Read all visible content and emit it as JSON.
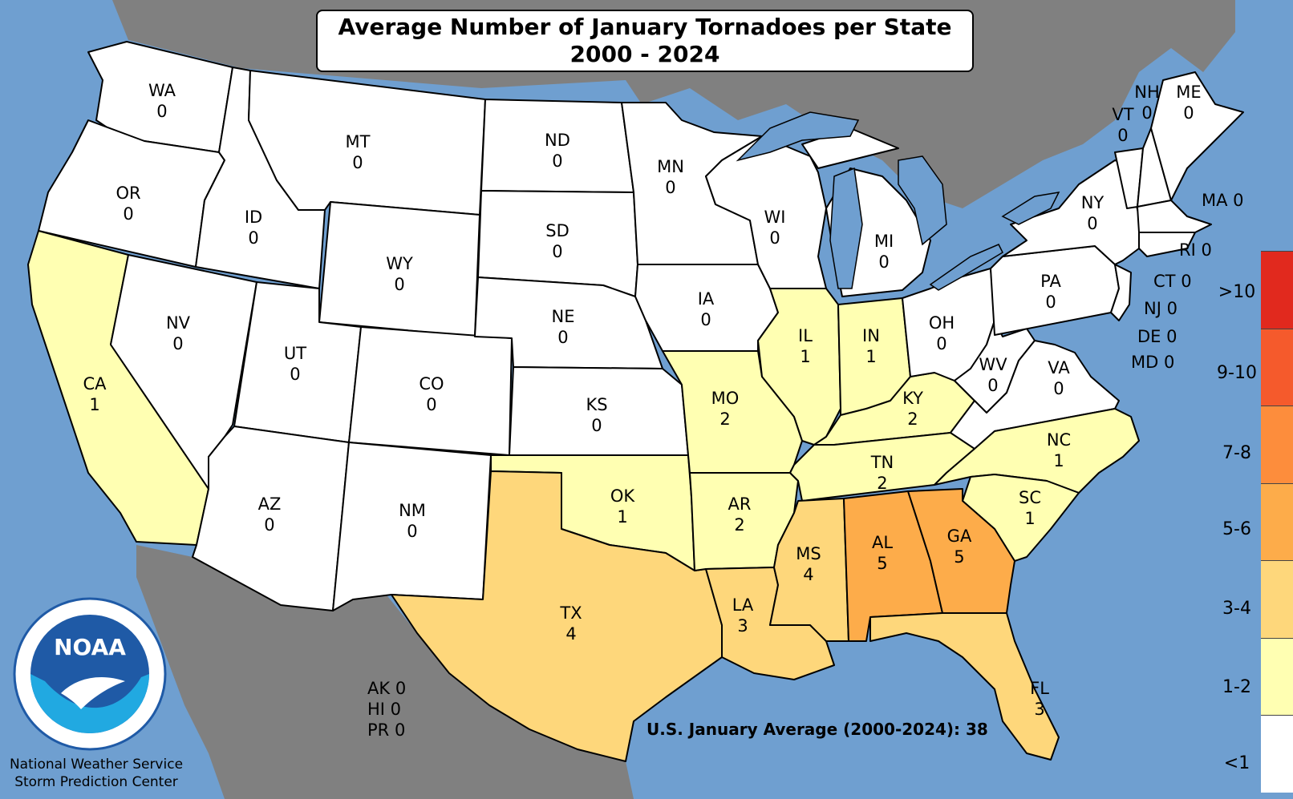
{
  "title": {
    "line1": "Average Number of January Tornadoes per State",
    "line2": "2000 - 2024"
  },
  "colors": {
    "ocean": "#6f9fd0",
    "land_outside": "#808080",
    "lt1": "#ffffff",
    "c1_2": "#ffffb2",
    "c3_4": "#fed77b",
    "c5_6": "#fdac4a",
    "c7_8": "#fd8d3c",
    "c9_10": "#f55a2c",
    "gt10": "#e1291e"
  },
  "states": [
    {
      "abbr": "WA",
      "value": "0"
    },
    {
      "abbr": "OR",
      "value": "0"
    },
    {
      "abbr": "CA",
      "value": "1"
    },
    {
      "abbr": "ID",
      "value": "0"
    },
    {
      "abbr": "NV",
      "value": "0"
    },
    {
      "abbr": "MT",
      "value": "0"
    },
    {
      "abbr": "WY",
      "value": "0"
    },
    {
      "abbr": "UT",
      "value": "0"
    },
    {
      "abbr": "AZ",
      "value": "0"
    },
    {
      "abbr": "CO",
      "value": "0"
    },
    {
      "abbr": "NM",
      "value": "0"
    },
    {
      "abbr": "ND",
      "value": "0"
    },
    {
      "abbr": "SD",
      "value": "0"
    },
    {
      "abbr": "NE",
      "value": "0"
    },
    {
      "abbr": "KS",
      "value": "0"
    },
    {
      "abbr": "OK",
      "value": "1"
    },
    {
      "abbr": "TX",
      "value": "4"
    },
    {
      "abbr": "MN",
      "value": "0"
    },
    {
      "abbr": "IA",
      "value": "0"
    },
    {
      "abbr": "MO",
      "value": "2"
    },
    {
      "abbr": "AR",
      "value": "2"
    },
    {
      "abbr": "LA",
      "value": "3"
    },
    {
      "abbr": "WI",
      "value": "0"
    },
    {
      "abbr": "IL",
      "value": "1"
    },
    {
      "abbr": "MI",
      "value": "0"
    },
    {
      "abbr": "IN",
      "value": "1"
    },
    {
      "abbr": "KY",
      "value": "2"
    },
    {
      "abbr": "TN",
      "value": "2"
    },
    {
      "abbr": "MS",
      "value": "4"
    },
    {
      "abbr": "AL",
      "value": "5"
    },
    {
      "abbr": "OH",
      "value": "0"
    },
    {
      "abbr": "WV",
      "value": "0"
    },
    {
      "abbr": "VA",
      "value": "0"
    },
    {
      "abbr": "NC",
      "value": "1"
    },
    {
      "abbr": "SC",
      "value": "1"
    },
    {
      "abbr": "GA",
      "value": "5"
    },
    {
      "abbr": "FL",
      "value": "3"
    },
    {
      "abbr": "PA",
      "value": "0"
    },
    {
      "abbr": "NY",
      "value": "0"
    },
    {
      "abbr": "VT",
      "value": "0"
    },
    {
      "abbr": "NH",
      "value": "0"
    },
    {
      "abbr": "ME",
      "value": "0"
    }
  ],
  "small_states": [
    {
      "abbr": "MA",
      "value": "0"
    },
    {
      "abbr": "RI",
      "value": "0"
    },
    {
      "abbr": "CT",
      "value": "0"
    },
    {
      "abbr": "NJ",
      "value": "0"
    },
    {
      "abbr": "DE",
      "value": "0"
    },
    {
      "abbr": "MD",
      "value": "0"
    }
  ],
  "territories": [
    {
      "abbr": "AK",
      "value": "0"
    },
    {
      "abbr": "HI",
      "value": "0"
    },
    {
      "abbr": "PR",
      "value": "0"
    }
  ],
  "us_average_label": "U.S. January Average (2000-2024): 38",
  "legend": [
    ">10",
    "9-10",
    "7-8",
    "5-6",
    "3-4",
    "1-2",
    "<1"
  ],
  "credit": {
    "line1": "National Weather Service",
    "line2": "Storm Prediction Center"
  },
  "logo_text": "NOAA"
}
